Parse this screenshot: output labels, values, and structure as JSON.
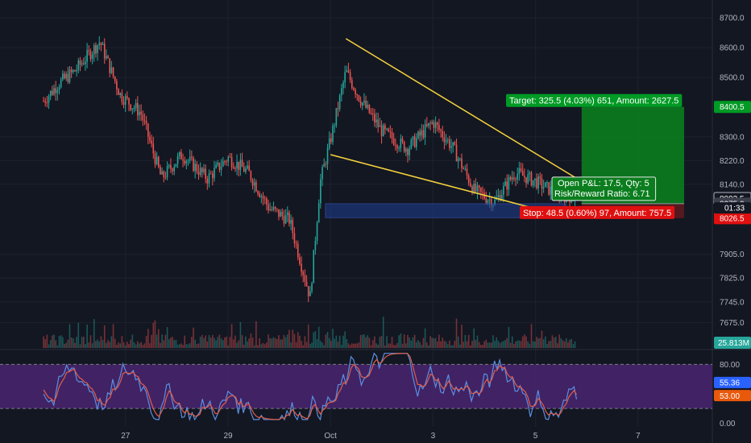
{
  "chart_data": {
    "type": "candlestick",
    "price_axis": {
      "range": [
        7590,
        8760
      ],
      "ticks": [
        {
          "value": 8700,
          "label": "8700.0"
        },
        {
          "value": 8600,
          "label": "8600.0"
        },
        {
          "value": 8500,
          "label": "8500.0"
        },
        {
          "value": 8300,
          "label": "8300.0"
        },
        {
          "value": 8220,
          "label": "8220.0"
        },
        {
          "value": 8140,
          "label": "8140.0"
        },
        {
          "value": 7905,
          "label": "7905.0"
        },
        {
          "value": 7825,
          "label": "7825.0"
        },
        {
          "value": 7745,
          "label": "7745.0"
        },
        {
          "value": 7675,
          "label": "7675.0"
        }
      ],
      "price_tags": [
        {
          "value": 8400.5,
          "label": "8400.5",
          "color": "#009a24"
        },
        {
          "value": 8092.5,
          "label": "8092.5",
          "color": "#131722",
          "border": "#b2b5be"
        },
        {
          "value": 8075.0,
          "label": "8075.0",
          "color": "#3a3f4b"
        },
        {
          "value": 8026.5,
          "label": "8026.5",
          "color": "#e01010"
        }
      ],
      "countdown": {
        "value": 8061,
        "label": "01:33"
      }
    },
    "time_axis": {
      "labels": [
        {
          "label": "27",
          "x_day": 27
        },
        {
          "label": "29",
          "x_day": 29
        },
        {
          "label": "Oct",
          "x_day": 31
        },
        {
          "label": "3",
          "x_day": 33
        },
        {
          "label": "5",
          "x_day": 35
        },
        {
          "label": "7",
          "x_day": 37
        }
      ]
    },
    "series": [
      {
        "name": "price",
        "x_day": [
          25.4,
          25.7,
          26.0,
          26.5,
          26.9,
          27.3,
          27.7,
          28.1,
          28.6,
          29.0,
          29.4,
          29.8,
          30.2,
          30.6,
          30.8,
          31.0,
          31.3,
          31.6,
          32.0,
          32.5,
          33.0,
          33.4,
          33.8,
          34.2,
          34.6,
          35.0,
          35.4,
          35.8
        ],
        "close": [
          8420,
          8480,
          8520,
          8620,
          8440,
          8380,
          8160,
          8240,
          8160,
          8230,
          8180,
          8060,
          8020,
          7760,
          8150,
          8290,
          8520,
          8420,
          8320,
          8260,
          8350,
          8260,
          8120,
          8080,
          8180,
          8150,
          8110,
          8092
        ]
      }
    ],
    "volume": {
      "label": "25.813M"
    },
    "rsi": {
      "range": [
        -5,
        98
      ],
      "band": [
        20,
        80
      ],
      "ticks": [
        {
          "value": 80,
          "label": "80.00"
        },
        {
          "value": 0,
          "label": "0.00"
        }
      ],
      "k_value": "55.36",
      "d_value": "53.00"
    },
    "trendlines": [
      {
        "x_day": [
          31.3,
          35.9
        ],
        "y": [
          8630,
          8150
        ]
      },
      {
        "x_day": [
          31.0,
          35.4
        ],
        "y": [
          8240,
          8040
        ]
      }
    ],
    "support_zone": {
      "x_day": [
        30.9,
        35.6
      ],
      "y": [
        8028,
        8075
      ]
    },
    "position": {
      "target_label": "Target: 325.5 (4.03%) 651, Amount: 2627.5",
      "stop_label": "Stop: 48.5 (0.60%) 97, Amount: 757.5",
      "open_pnl_label": "Open P&L: 17.5, Qty: 5",
      "risk_reward_label": "Risk/Reward Ratio: 6.71",
      "x_day": [
        35.9,
        37.9
      ],
      "entry": 8075.0,
      "target": 8400.5,
      "stop": 8026.5
    },
    "colors": {
      "background": "#131722",
      "up": "#26a69a",
      "down": "#ef5350",
      "trendline": "#f7d33c",
      "zone": "#1e3a8a",
      "target_fill": "#0b7d1e",
      "rsi_band": "#4a2570",
      "rsi_k": "#5b8fe0",
      "rsi_d": "#e05e4a"
    }
  }
}
